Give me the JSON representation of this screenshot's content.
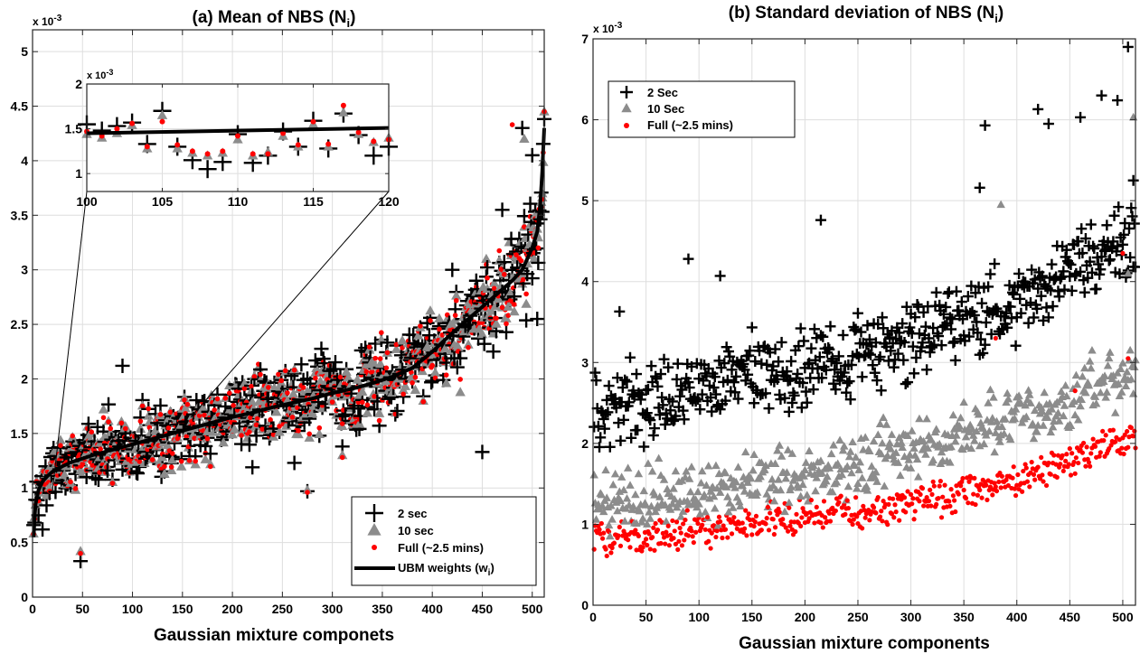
{
  "chart_data": [
    {
      "id": "a",
      "type": "scatter",
      "title": "(a)  Mean of NBS (N",
      "title_sub": "i",
      "title_suffix": ")",
      "xlabel": "Gaussian mixture componets",
      "ylabel": "",
      "y_exponent": "x 10",
      "y_exponent_power": "-3",
      "xlim": [
        0,
        512
      ],
      "ylim": [
        0,
        5.2
      ],
      "x_ticks": [
        0,
        50,
        100,
        150,
        200,
        250,
        300,
        350,
        400,
        450,
        500
      ],
      "y_ticks": [
        0,
        0.5,
        1,
        1.5,
        2,
        2.5,
        3,
        3.5,
        4,
        4.5,
        5
      ],
      "y_tick_labels": [
        "0",
        "0.5",
        "1",
        "1.5",
        "2",
        "2.5",
        "3",
        "3.5",
        "4",
        "4.5",
        "5"
      ],
      "grid": true,
      "legend_position": "bottom-right",
      "series": [
        {
          "name": "2 sec",
          "marker": "plus",
          "color": "#000000"
        },
        {
          "name": "10 sec",
          "marker": "triangle",
          "color": "#8c8c8c"
        },
        {
          "name": "Full (~2.5 mins)",
          "marker": "dot",
          "color": "#ff0000"
        },
        {
          "name": "UBM weights (w",
          "name_sub": "i",
          "name_suffix": ")",
          "marker": "line",
          "color": "#000000"
        }
      ],
      "ubm_curve": {
        "x": [
          1,
          3,
          6,
          10,
          15,
          20,
          30,
          40,
          50,
          60,
          80,
          100,
          120,
          140,
          160,
          180,
          200,
          220,
          240,
          260,
          280,
          300,
          320,
          340,
          360,
          380,
          400,
          420,
          440,
          460,
          480,
          490,
          500,
          505,
          508,
          510,
          512
        ],
        "y": [
          0.55,
          0.85,
          0.98,
          1.06,
          1.11,
          1.15,
          1.2,
          1.24,
          1.27,
          1.3,
          1.35,
          1.4,
          1.45,
          1.5,
          1.55,
          1.6,
          1.65,
          1.69,
          1.74,
          1.78,
          1.82,
          1.87,
          1.91,
          1.96,
          2.02,
          2.1,
          2.25,
          2.42,
          2.58,
          2.74,
          2.9,
          3.0,
          3.2,
          3.35,
          3.6,
          3.9,
          4.3
        ]
      },
      "points_2sec": [
        [
          10,
          0.62
        ],
        [
          48,
          0.33
        ],
        [
          90,
          2.12
        ],
        [
          220,
          1.19
        ],
        [
          262,
          1.23
        ],
        [
          275,
          0.97
        ],
        [
          310,
          1.38
        ],
        [
          450,
          1.33
        ],
        [
          490,
          4.3
        ],
        [
          500,
          4.05
        ],
        [
          505,
          2.55
        ],
        [
          470,
          3.55
        ],
        [
          420,
          3.0
        ]
      ],
      "points_10sec": [
        [
          48,
          0.42
        ],
        [
          275,
          0.98
        ],
        [
          310,
          1.3
        ],
        [
          492,
          4.2
        ],
        [
          510,
          3.7
        ]
      ],
      "points_full": [
        [
          48,
          0.4
        ],
        [
          275,
          0.96
        ],
        [
          310,
          1.28
        ],
        [
          480,
          4.33
        ]
      ],
      "inset": {
        "xlim": [
          100,
          120
        ],
        "ylim": [
          0.8,
          2
        ],
        "x_ticks": [
          100,
          105,
          110,
          115,
          120
        ],
        "y_ticks": [
          1,
          1.5,
          2
        ],
        "y_tick_labels": [
          "1",
          "1.5",
          "2"
        ],
        "y_exponent": "x 10",
        "y_exponent_power": "-3",
        "ubm_x": [
          100,
          120
        ],
        "ubm_y": [
          1.45,
          1.51
        ],
        "points_2sec": [
          [
            100,
            1.55
          ],
          [
            101,
            1.48
          ],
          [
            102,
            1.53
          ],
          [
            103,
            1.57
          ],
          [
            104,
            1.33
          ],
          [
            105,
            1.7
          ],
          [
            106,
            1.3
          ],
          [
            107,
            1.15
          ],
          [
            108,
            1.05
          ],
          [
            109,
            1.13
          ],
          [
            110,
            1.44
          ],
          [
            111,
            1.12
          ],
          [
            112,
            1.2
          ],
          [
            113,
            1.47
          ],
          [
            114,
            1.3
          ],
          [
            115,
            1.59
          ],
          [
            116,
            1.28
          ],
          [
            117,
            1.67
          ],
          [
            118,
            1.43
          ],
          [
            119,
            1.2
          ],
          [
            120,
            1.3
          ]
        ],
        "points_10sec": [
          [
            100,
            1.44
          ],
          [
            101,
            1.4
          ],
          [
            102,
            1.45
          ],
          [
            103,
            1.54
          ],
          [
            104,
            1.28
          ],
          [
            105,
            1.65
          ],
          [
            106,
            1.28
          ],
          [
            107,
            1.23
          ],
          [
            108,
            1.2
          ],
          [
            109,
            1.23
          ],
          [
            110,
            1.38
          ],
          [
            111,
            1.2
          ],
          [
            112,
            1.24
          ],
          [
            113,
            1.42
          ],
          [
            114,
            1.3
          ],
          [
            115,
            1.55
          ],
          [
            116,
            1.3
          ],
          [
            117,
            1.68
          ],
          [
            118,
            1.44
          ],
          [
            119,
            1.35
          ],
          [
            120,
            1.4
          ]
        ],
        "points_full": [
          [
            100,
            1.47
          ],
          [
            101,
            1.42
          ],
          [
            102,
            1.5
          ],
          [
            103,
            1.56
          ],
          [
            104,
            1.3
          ],
          [
            105,
            1.58
          ],
          [
            106,
            1.32
          ],
          [
            107,
            1.25
          ],
          [
            108,
            1.22
          ],
          [
            109,
            1.25
          ],
          [
            110,
            1.42
          ],
          [
            111,
            1.22
          ],
          [
            112,
            1.22
          ],
          [
            113,
            1.45
          ],
          [
            114,
            1.32
          ],
          [
            115,
            1.58
          ],
          [
            116,
            1.33
          ],
          [
            117,
            1.76
          ],
          [
            118,
            1.46
          ],
          [
            119,
            1.36
          ],
          [
            120,
            1.38
          ]
        ]
      }
    },
    {
      "id": "b",
      "type": "scatter",
      "title": "(b)  Standard deviation of NBS (N",
      "title_sub": "i",
      "title_suffix": ")",
      "xlabel": "Gaussian mixture components",
      "ylabel": "",
      "y_exponent": "x 10",
      "y_exponent_power": "-3",
      "xlim": [
        0,
        512
      ],
      "ylim": [
        0,
        7
      ],
      "x_ticks": [
        0,
        50,
        100,
        150,
        200,
        250,
        300,
        350,
        400,
        450,
        500
      ],
      "y_ticks": [
        0,
        1,
        2,
        3,
        4,
        5,
        6,
        7
      ],
      "y_tick_labels": [
        "0",
        "1",
        "2",
        "3",
        "4",
        "5",
        "6",
        "7"
      ],
      "grid": true,
      "legend_position": "top-left",
      "series": [
        {
          "name": "2 Sec",
          "marker": "plus",
          "color": "#000000",
          "trend": [
            [
              0,
              2.35
            ],
            [
              100,
              2.75
            ],
            [
              200,
              2.95
            ],
            [
              300,
              3.3
            ],
            [
              400,
              3.75
            ],
            [
              512,
              4.6
            ]
          ],
          "spread": 0.42
        },
        {
          "name": "10 Sec",
          "marker": "triangle",
          "color": "#8c8c8c",
          "trend": [
            [
              0,
              1.25
            ],
            [
              100,
              1.4
            ],
            [
              200,
              1.6
            ],
            [
              300,
              1.95
            ],
            [
              400,
              2.3
            ],
            [
              512,
              2.9
            ]
          ],
          "spread": 0.32
        },
        {
          "name": "Full (~2.5 mins)",
          "marker": "dot",
          "color": "#ff0000",
          "trend": [
            [
              0,
              0.82
            ],
            [
              100,
              0.92
            ],
            [
              200,
              1.05
            ],
            [
              300,
              1.25
            ],
            [
              400,
              1.55
            ],
            [
              512,
              2.1
            ]
          ],
          "spread": 0.2
        }
      ],
      "points_2sec": [
        [
          25,
          3.63
        ],
        [
          90,
          4.28
        ],
        [
          120,
          4.07
        ],
        [
          215,
          4.76
        ],
        [
          370,
          5.93
        ],
        [
          365,
          5.16
        ],
        [
          420,
          6.13
        ],
        [
          430,
          5.95
        ],
        [
          460,
          6.03
        ],
        [
          480,
          6.3
        ],
        [
          495,
          6.24
        ],
        [
          505,
          6.9
        ],
        [
          510,
          5.25
        ]
      ],
      "points_10sec": [
        [
          385,
          4.95
        ],
        [
          510,
          6.03
        ],
        [
          505,
          4.1
        ]
      ],
      "points_full": [
        [
          380,
          3.3
        ],
        [
          455,
          2.65
        ],
        [
          500,
          4.35
        ],
        [
          505,
          3.05
        ]
      ]
    }
  ]
}
